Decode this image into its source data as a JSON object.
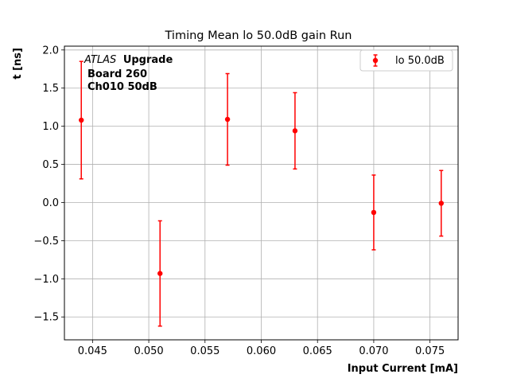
{
  "chart_data": {
    "type": "scatter",
    "title": "Timing Mean lo 50.0dB gain Run",
    "xlabel": "Input Current [mA]",
    "ylabel": "t [ns]",
    "xlim": [
      0.0425,
      0.0775
    ],
    "ylim": [
      -1.8,
      2.05
    ],
    "xticks": [
      0.045,
      0.05,
      0.055,
      0.06,
      0.065,
      0.07,
      0.075
    ],
    "xtick_labels": [
      "0.045",
      "0.050",
      "0.055",
      "0.060",
      "0.065",
      "0.070",
      "0.075"
    ],
    "yticks": [
      -1.5,
      -1.0,
      -0.5,
      0.0,
      0.5,
      1.0,
      1.5,
      2.0
    ],
    "ytick_labels": [
      "−1.5",
      "−1.0",
      "−0.5",
      "0.0",
      "0.5",
      "1.0",
      "1.5",
      "2.0"
    ],
    "grid": true,
    "legend_position": "top-right",
    "annotation": {
      "italic": "ATLAS",
      "bold": "Upgrade",
      "line2": "Board 260",
      "line3": "Ch010 50dB"
    },
    "series": [
      {
        "name": "lo 50.0dB",
        "color": "#ff0000",
        "x": [
          0.044,
          0.051,
          0.057,
          0.063,
          0.07,
          0.076
        ],
        "y": [
          1.08,
          -0.93,
          1.09,
          0.94,
          -0.13,
          -0.01
        ],
        "yerr": [
          0.77,
          0.69,
          0.6,
          0.5,
          0.49,
          0.43
        ]
      }
    ]
  }
}
